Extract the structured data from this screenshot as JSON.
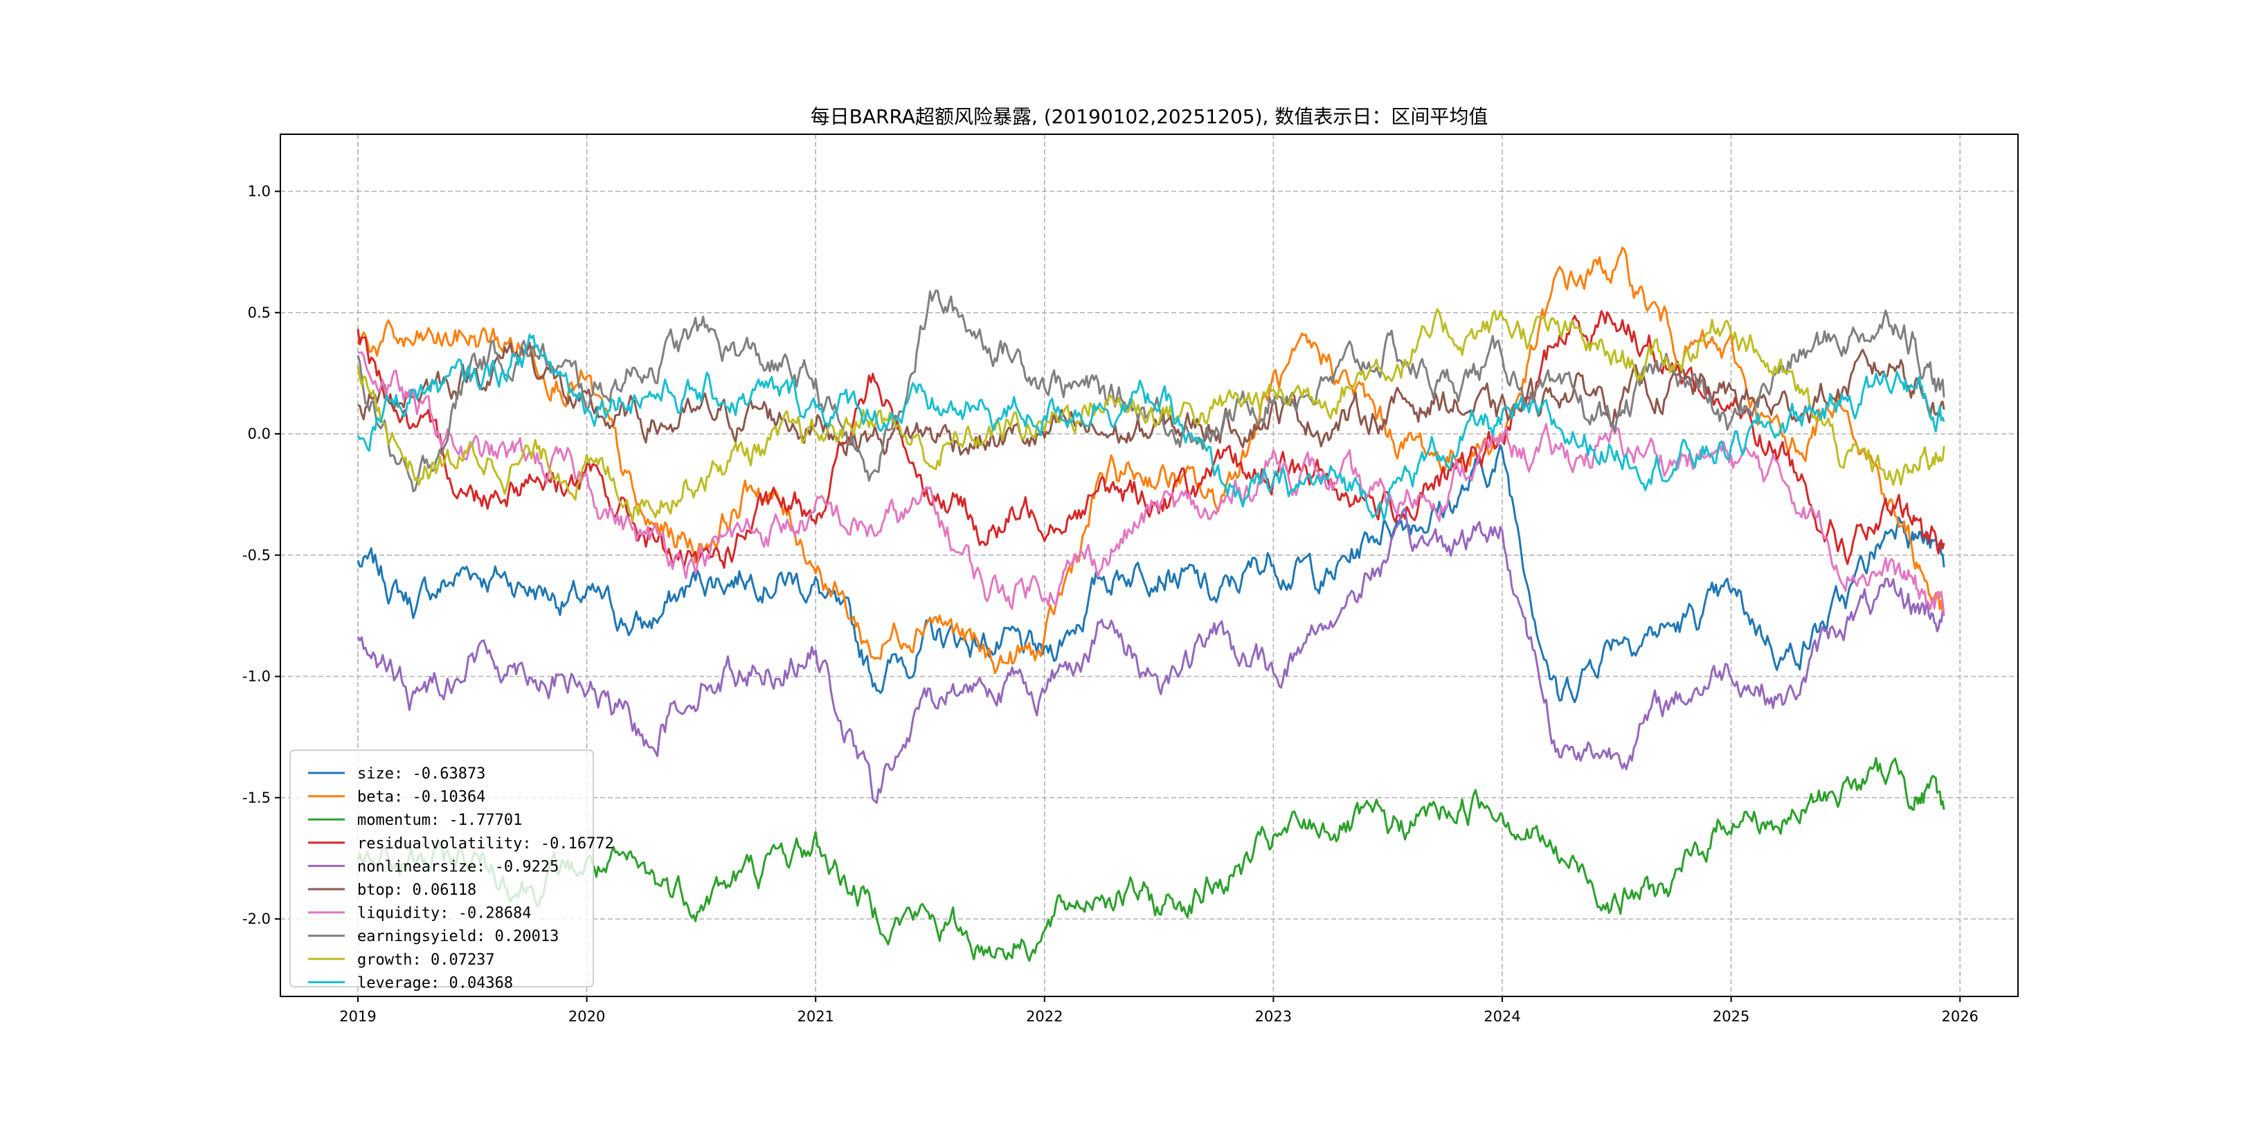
{
  "chart_data": {
    "type": "line",
    "title": "每日BARRA超额风险暴露, (20190102,20251205),  数值表示日：区间平均值",
    "xlabel": "",
    "ylabel": "",
    "xlim": [
      2018.7,
      2026.25
    ],
    "ylim": [
      -2.32,
      1.24
    ],
    "grid": true,
    "legend_position": "lower-left",
    "x_ticks": [
      "2019",
      "2020",
      "2021",
      "2022",
      "2023",
      "2024",
      "2025",
      "2026"
    ],
    "y_ticks": [
      "-2.0",
      "-1.5",
      "-1.0",
      "-0.5",
      "0.0",
      "0.5",
      "1.0"
    ],
    "x": [
      2019.0,
      2019.25,
      2019.5,
      2019.75,
      2020.0,
      2020.25,
      2020.5,
      2020.75,
      2021.0,
      2021.25,
      2021.5,
      2021.75,
      2022.0,
      2022.25,
      2022.5,
      2022.75,
      2023.0,
      2023.25,
      2023.5,
      2023.75,
      2024.0,
      2024.25,
      2024.5,
      2024.75,
      2025.0,
      2025.25,
      2025.5,
      2025.75,
      2025.93
    ],
    "series": [
      {
        "name": "size",
        "legend": "size: -0.63873",
        "color": "#1f77b4",
        "values": [
          -0.53,
          -0.7,
          -0.55,
          -0.62,
          -0.7,
          -0.8,
          -0.6,
          -0.55,
          -0.62,
          -1.0,
          -0.85,
          -0.85,
          -0.95,
          -0.6,
          -0.5,
          -0.7,
          -0.5,
          -0.6,
          -0.35,
          -0.3,
          -0.1,
          -1.1,
          -0.8,
          -0.8,
          -0.7,
          -0.9,
          -0.7,
          -0.3,
          -0.55
        ]
      },
      {
        "name": "beta",
        "legend": "beta: -0.10364",
        "color": "#ff7f0e",
        "values": [
          0.4,
          0.35,
          0.4,
          0.35,
          0.2,
          -0.4,
          -0.45,
          -0.2,
          -0.5,
          -0.9,
          -0.7,
          -0.95,
          -0.9,
          -0.2,
          -0.15,
          -0.3,
          0.2,
          0.3,
          0.0,
          -0.1,
          0.0,
          0.6,
          0.7,
          0.4,
          0.3,
          -0.1,
          0.2,
          -0.4,
          -0.75
        ]
      },
      {
        "name": "momentum",
        "legend": "momentum: -1.77701",
        "color": "#2ca02c",
        "values": [
          -1.8,
          -1.78,
          -1.75,
          -1.85,
          -1.78,
          -1.85,
          -1.9,
          -1.8,
          -1.7,
          -1.95,
          -2.0,
          -2.1,
          -2.05,
          -1.85,
          -1.95,
          -1.85,
          -1.7,
          -1.6,
          -1.65,
          -1.55,
          -1.5,
          -1.75,
          -1.9,
          -1.88,
          -1.55,
          -1.6,
          -1.45,
          -1.4,
          -1.55
        ]
      },
      {
        "name": "residualvolatility",
        "legend": "residualvolatility: -0.16772",
        "color": "#d62728",
        "values": [
          0.4,
          0.0,
          -0.25,
          -0.15,
          -0.2,
          -0.4,
          -0.6,
          -0.35,
          -0.3,
          0.2,
          -0.2,
          -0.4,
          -0.3,
          -0.25,
          -0.25,
          -0.2,
          -0.15,
          -0.2,
          -0.3,
          -0.2,
          -0.05,
          0.4,
          0.5,
          0.3,
          0.1,
          -0.1,
          -0.45,
          -0.35,
          -0.45
        ]
      },
      {
        "name": "nonlinearsize",
        "legend": "nonlinearsize: -0.9225",
        "color": "#9467bd",
        "values": [
          -0.85,
          -1.1,
          -0.9,
          -0.95,
          -1.05,
          -1.25,
          -1.0,
          -0.95,
          -0.9,
          -1.5,
          -1.1,
          -1.0,
          -1.05,
          -0.8,
          -1.0,
          -0.85,
          -1.0,
          -0.75,
          -0.5,
          -0.45,
          -0.4,
          -1.3,
          -1.3,
          -1.1,
          -0.95,
          -1.1,
          -0.75,
          -0.7,
          -0.75
        ]
      },
      {
        "name": "btop",
        "legend": "btop: 0.06118",
        "color": "#8c564b",
        "values": [
          0.1,
          0.2,
          0.25,
          0.35,
          0.05,
          0.05,
          0.05,
          0.08,
          0.05,
          0.0,
          0.0,
          -0.02,
          -0.02,
          0.0,
          0.0,
          0.05,
          0.1,
          0.05,
          0.1,
          0.15,
          0.05,
          0.2,
          0.15,
          0.2,
          0.15,
          0.1,
          0.2,
          0.3,
          0.1
        ]
      },
      {
        "name": "liquidity",
        "legend": "liquidity: -0.28684",
        "color": "#e377c2",
        "values": [
          0.35,
          0.1,
          -0.1,
          -0.1,
          -0.2,
          -0.45,
          -0.5,
          -0.4,
          -0.35,
          -0.4,
          -0.3,
          -0.65,
          -0.6,
          -0.5,
          -0.3,
          -0.35,
          -0.1,
          -0.2,
          -0.3,
          -0.2,
          -0.05,
          -0.1,
          -0.05,
          -0.1,
          -0.1,
          -0.2,
          -0.5,
          -0.6,
          -0.75
        ]
      },
      {
        "name": "earningsyield",
        "legend": "earningsyield: 0.20013",
        "color": "#7f7f7f",
        "values": [
          0.3,
          -0.3,
          0.3,
          0.35,
          0.15,
          0.3,
          0.4,
          0.3,
          0.2,
          -0.2,
          0.55,
          0.4,
          0.25,
          0.15,
          0.1,
          0.0,
          0.2,
          0.2,
          0.35,
          0.2,
          0.3,
          0.1,
          0.05,
          0.3,
          0.0,
          0.3,
          0.4,
          0.5,
          0.15
        ]
      },
      {
        "name": "growth",
        "legend": "growth: 0.07237",
        "color": "#bcbd22",
        "values": [
          0.25,
          -0.15,
          -0.1,
          -0.1,
          -0.15,
          -0.25,
          -0.15,
          -0.05,
          -0.05,
          0.1,
          -0.1,
          0.0,
          0.05,
          0.15,
          0.1,
          0.1,
          0.15,
          0.2,
          0.3,
          0.4,
          0.45,
          0.4,
          0.3,
          0.3,
          0.5,
          0.2,
          -0.1,
          -0.2,
          -0.05
        ]
      },
      {
        "name": "leverage",
        "legend": "leverage: 0.04368",
        "color": "#17becf",
        "values": [
          0.0,
          0.2,
          0.2,
          0.35,
          0.15,
          0.2,
          0.15,
          0.15,
          0.12,
          0.1,
          0.1,
          0.08,
          0.1,
          0.15,
          0.15,
          -0.2,
          -0.25,
          -0.2,
          -0.25,
          -0.05,
          0.05,
          0.0,
          -0.05,
          -0.1,
          -0.05,
          0.05,
          0.15,
          0.25,
          0.05
        ]
      }
    ]
  }
}
